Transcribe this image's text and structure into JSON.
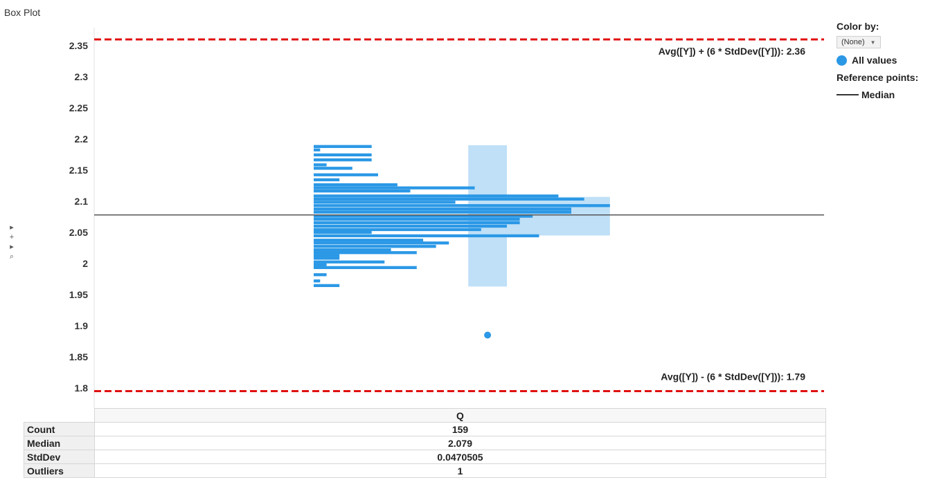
{
  "page_title": "Box Plot",
  "legend": {
    "color_by_label": "Color by:",
    "color_by_value": "(None)",
    "all_values_label": "All values",
    "reference_points_label": "Reference points:",
    "median_label": "Median",
    "colors": {
      "marks": "#2b98e6",
      "box": "#bfe0f7",
      "reference": "#e01010",
      "median": "#555555"
    }
  },
  "side_controls": [
    "▸",
    "+",
    "▸",
    "⌕"
  ],
  "chart_data": {
    "type": "bar",
    "title": "Box Plot",
    "ylim": [
      1.79,
      2.37
    ],
    "y_ticks": [
      {
        "value": 2.35,
        "label": "2.35"
      },
      {
        "value": 2.3,
        "label": "2.3"
      },
      {
        "value": 2.25,
        "label": "2.25"
      },
      {
        "value": 2.2,
        "label": "2.2"
      },
      {
        "value": 2.15,
        "label": "2.15"
      },
      {
        "value": 2.1,
        "label": "2.1"
      },
      {
        "value": 2.05,
        "label": "2.05"
      },
      {
        "value": 2.0,
        "label": "2"
      },
      {
        "value": 1.95,
        "label": "1.95"
      },
      {
        "value": 1.9,
        "label": "1.9"
      },
      {
        "value": 1.85,
        "label": "1.85"
      },
      {
        "value": 1.8,
        "label": "1.8"
      }
    ],
    "grid": false,
    "category": "Q",
    "value_count_range": [
      0,
      46
    ],
    "histogram": [
      {
        "y": 1.9646,
        "count": 4
      },
      {
        "y": 1.972,
        "count": 1
      },
      {
        "y": 1.982,
        "count": 2
      },
      {
        "y": 1.9935,
        "count": 16
      },
      {
        "y": 1.998,
        "count": 2
      },
      {
        "y": 2.0025,
        "count": 11
      },
      {
        "y": 2.0085,
        "count": 4
      },
      {
        "y": 2.013,
        "count": 4
      },
      {
        "y": 2.0175,
        "count": 16
      },
      {
        "y": 2.022,
        "count": 12
      },
      {
        "y": 2.0275,
        "count": 19
      },
      {
        "y": 2.033,
        "count": 21
      },
      {
        "y": 2.0375,
        "count": 17
      },
      {
        "y": 2.0445,
        "count": 35
      },
      {
        "y": 2.05,
        "count": 9
      },
      {
        "y": 2.0545,
        "count": 26
      },
      {
        "y": 2.06,
        "count": 30
      },
      {
        "y": 2.0655,
        "count": 32
      },
      {
        "y": 2.071,
        "count": 32
      },
      {
        "y": 2.076,
        "count": 34
      },
      {
        "y": 2.0825,
        "count": 40
      },
      {
        "y": 2.0875,
        "count": 40
      },
      {
        "y": 2.093,
        "count": 46
      },
      {
        "y": 2.0985,
        "count": 22
      },
      {
        "y": 2.1035,
        "count": 42
      },
      {
        "y": 2.1085,
        "count": 38
      },
      {
        "y": 2.1165,
        "count": 15
      },
      {
        "y": 2.1215,
        "count": 25
      },
      {
        "y": 2.1265,
        "count": 13
      },
      {
        "y": 2.1345,
        "count": 4
      },
      {
        "y": 2.1425,
        "count": 10
      },
      {
        "y": 2.153,
        "count": 6
      },
      {
        "y": 2.1585,
        "count": 2
      },
      {
        "y": 2.1665,
        "count": 9
      },
      {
        "y": 2.1745,
        "count": 9
      },
      {
        "y": 2.1825,
        "count": 1
      },
      {
        "y": 2.188,
        "count": 9
      }
    ],
    "box": {
      "whisker_low": 1.963,
      "q1": 2.045,
      "median": 2.079,
      "q3": 2.107,
      "whisker_high": 2.19,
      "box_count_range": [
        28,
        46
      ],
      "whisker_count_range": [
        24,
        30
      ]
    },
    "outliers": [
      {
        "y": 1.885,
        "count": 27
      }
    ],
    "reference_lines": [
      {
        "value": 2.36,
        "label": "Avg([Y]) + (6 * StdDev([Y])): 2.36"
      },
      {
        "value": 1.795,
        "label": "Avg([Y]) - (6 * StdDev([Y])): 1.79"
      }
    ],
    "median_line": {
      "value": 2.078
    }
  },
  "summary_table": {
    "column_header": "Q",
    "rows": [
      {
        "label": "Count",
        "value": "159"
      },
      {
        "label": "Median",
        "value": "2.079"
      },
      {
        "label": "StdDev",
        "value": "0.0470505"
      },
      {
        "label": "Outliers",
        "value": "1"
      }
    ]
  }
}
